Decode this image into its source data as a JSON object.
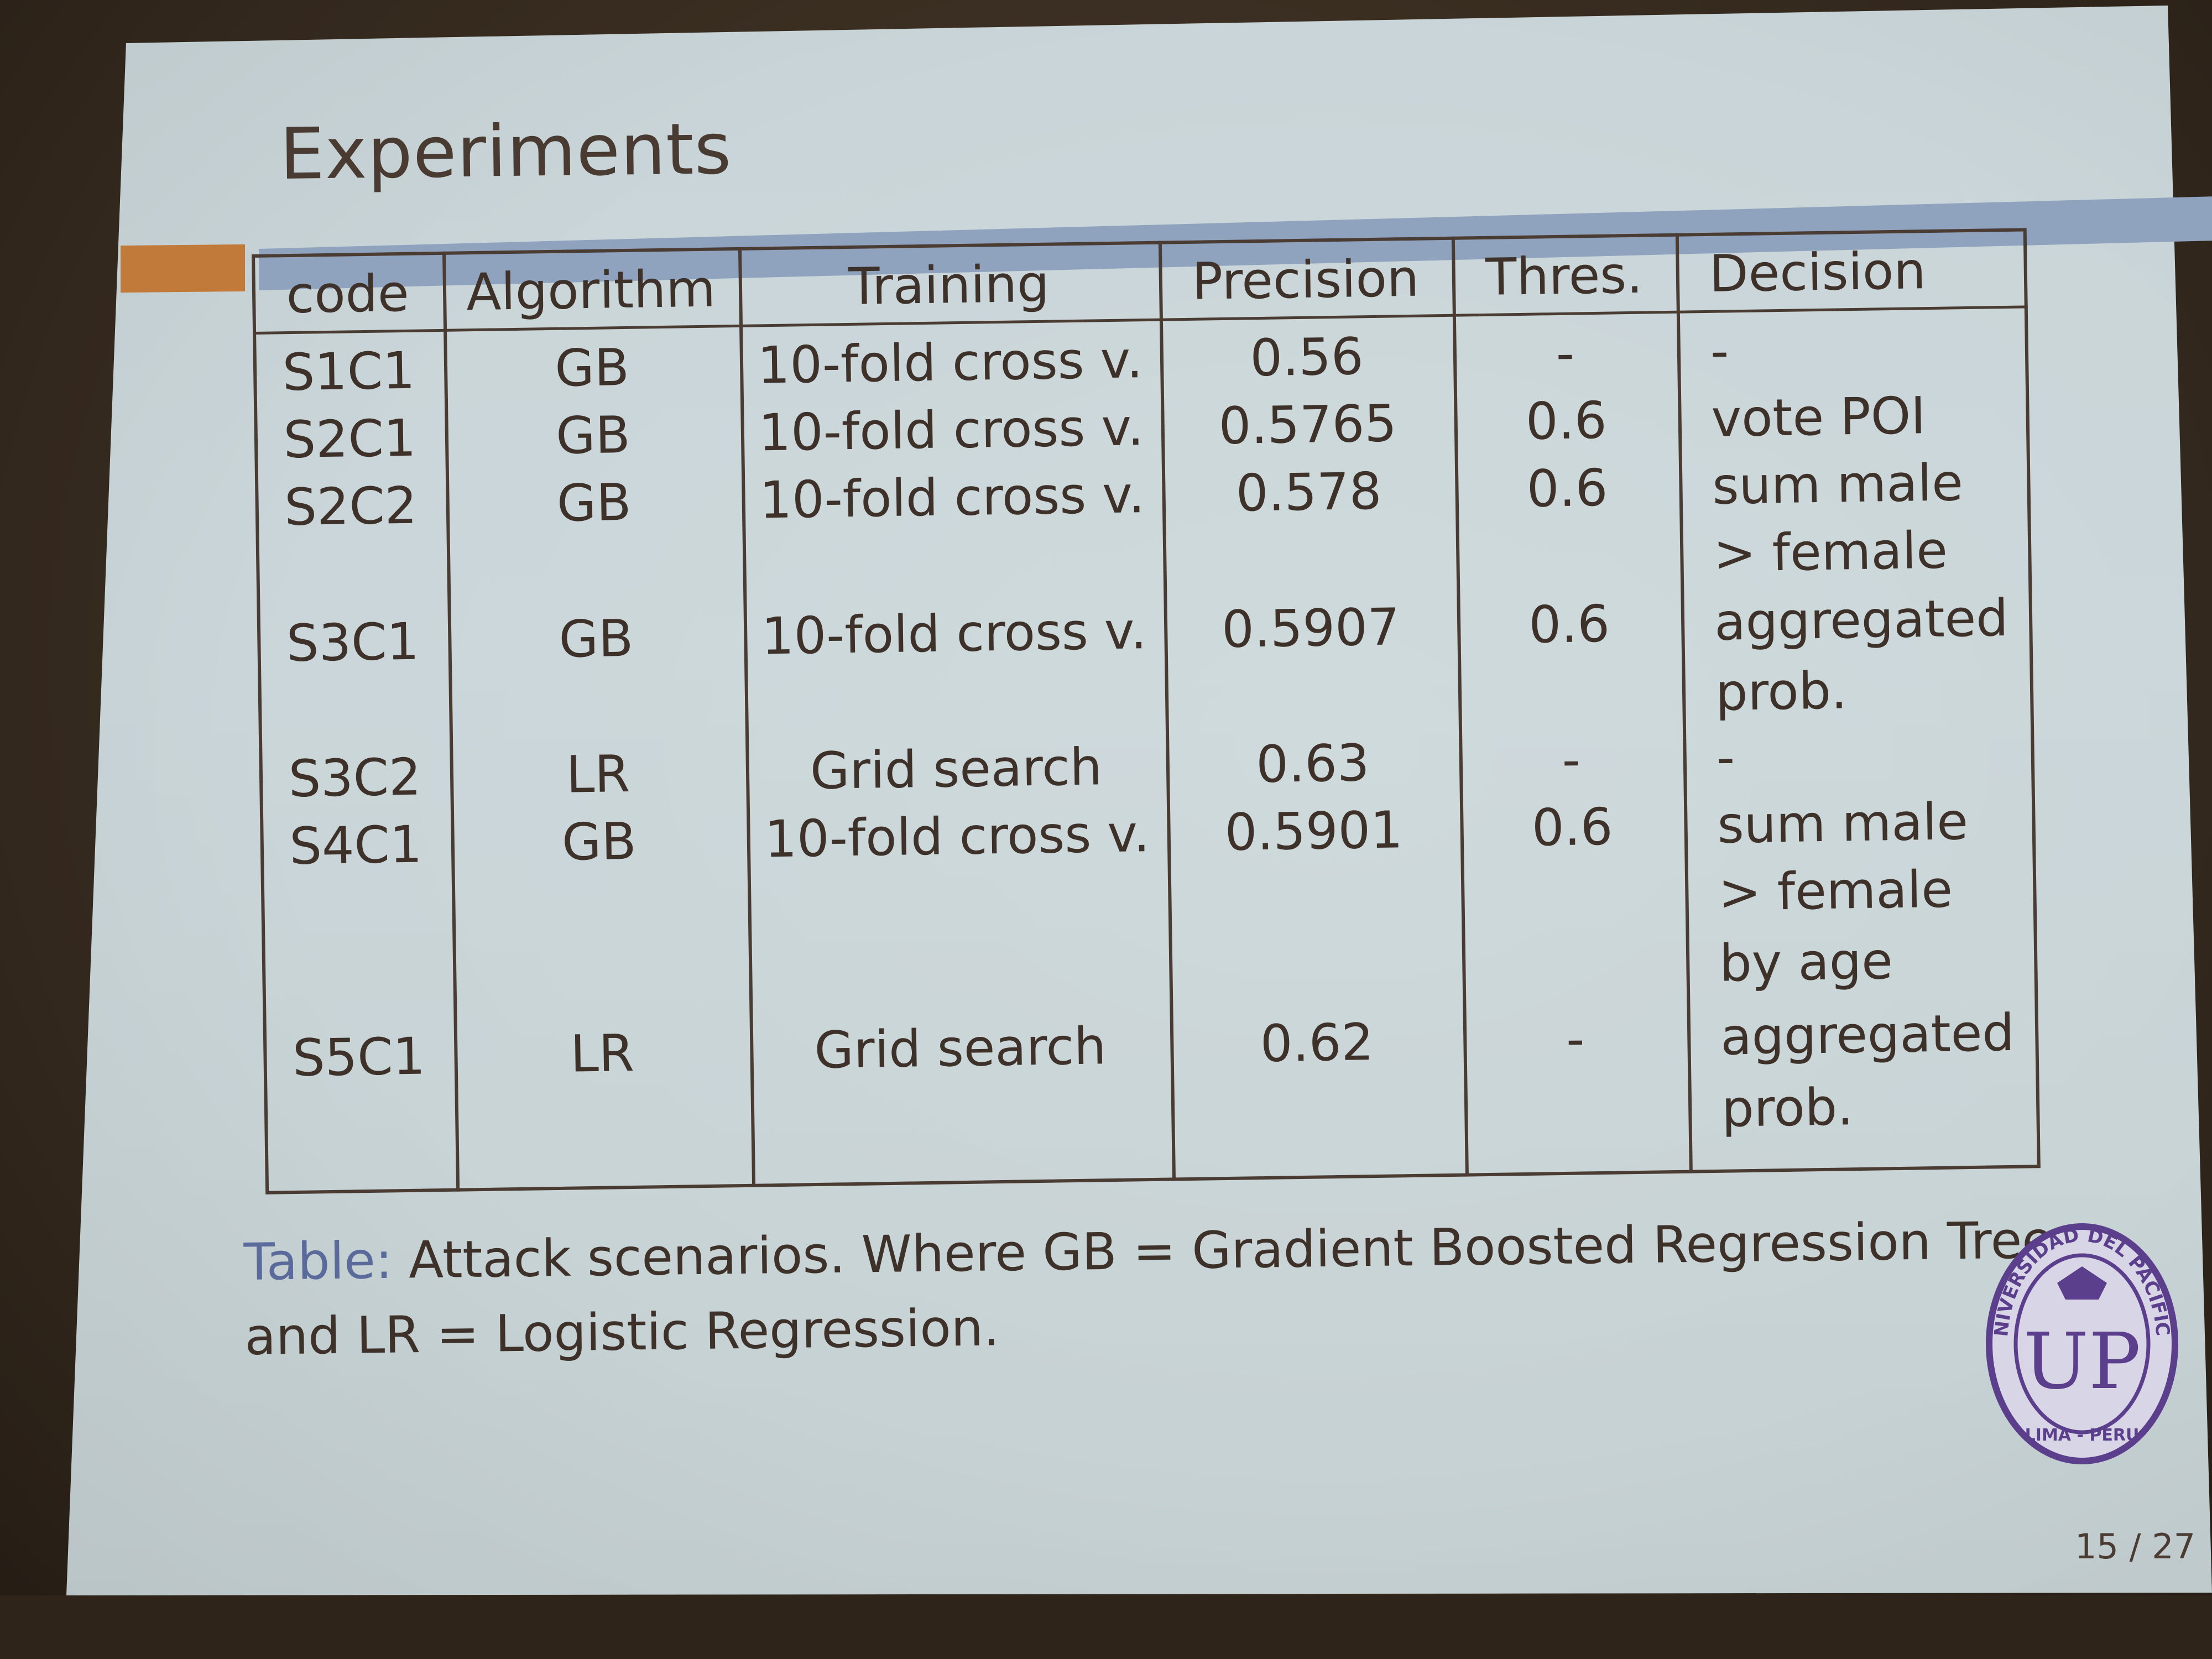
{
  "slide": {
    "title": "Experiments",
    "page": "15 / 27"
  },
  "table": {
    "headers": [
      "code",
      "Algorithm",
      "Training",
      "Precision",
      "Thres.",
      "Decision"
    ],
    "rows": [
      {
        "code": "S1C1",
        "algorithm": "GB",
        "training": "10-fold cross v.",
        "precision": "0.56",
        "thres": "-",
        "decision": [
          "-"
        ]
      },
      {
        "code": "S2C1",
        "algorithm": "GB",
        "training": "10-fold cross v.",
        "precision": "0.5765",
        "thres": "0.6",
        "decision": [
          "vote POI"
        ]
      },
      {
        "code": "S2C2",
        "algorithm": "GB",
        "training": "10-fold cross v.",
        "precision": "0.578",
        "thres": "0.6",
        "decision": [
          "sum  male",
          "> female"
        ]
      },
      {
        "code": "S3C1",
        "algorithm": "GB",
        "training": "10-fold cross v.",
        "precision": "0.5907",
        "thres": "0.6",
        "decision": [
          "aggregated",
          "prob."
        ]
      },
      {
        "code": "S3C2",
        "algorithm": "LR",
        "training": "Grid search",
        "precision": "0.63",
        "thres": "-",
        "decision": [
          "-"
        ]
      },
      {
        "code": "S4C1",
        "algorithm": "GB",
        "training": "10-fold cross v.",
        "precision": "0.5901",
        "thres": "0.6",
        "decision": [
          "sum  male",
          ">  female",
          "by age"
        ]
      },
      {
        "code": "S5C1",
        "algorithm": "LR",
        "training": "Grid search",
        "precision": "0.62",
        "thres": "-",
        "decision": [
          "aggregated",
          "prob."
        ]
      }
    ]
  },
  "caption": {
    "label": "Table:",
    "line1": "Attack scenarios.  Where GB = Gradient Boosted Regression Trees",
    "line2": "and LR = Logistic Regression."
  },
  "seal": {
    "text": "UNIVERSIDAD DEL PACIFICO",
    "subtext": "LIMA - PERU",
    "monogram": "UP"
  }
}
